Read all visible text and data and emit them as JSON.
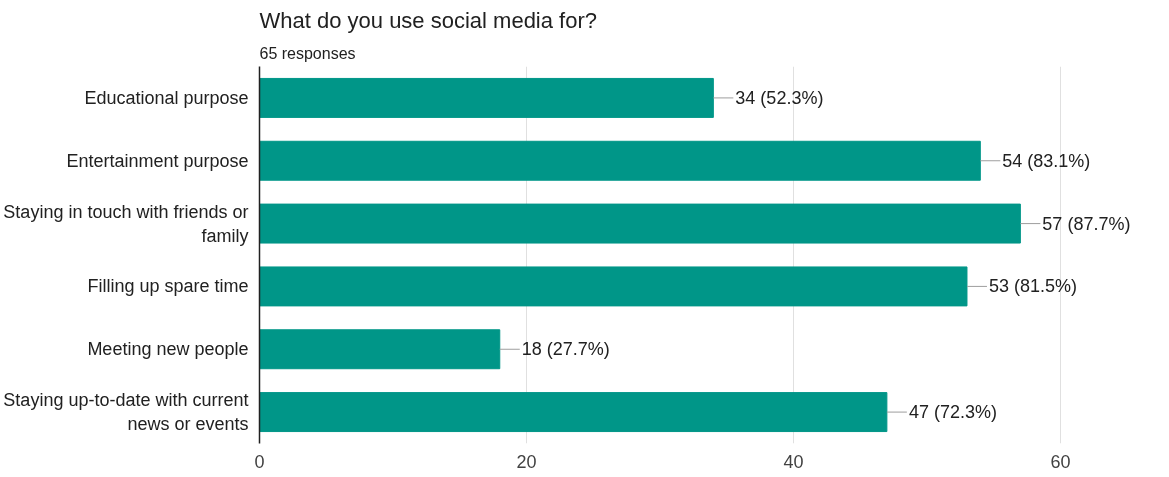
{
  "chart_data": {
    "type": "bar",
    "orientation": "horizontal",
    "title": "What do you use social media for?",
    "subtitle": "65 responses",
    "categories": [
      "Educational purpose",
      "Entertainment purpose",
      "Staying in touch with friends or family",
      "Filling up spare time",
      "Meeting new people",
      "Staying up-to-date with current news or events"
    ],
    "values": [
      34,
      54,
      57,
      53,
      18,
      47
    ],
    "value_labels": [
      "34 (52.3%)",
      "54 (83.1%)",
      "57 (87.7%)",
      "53 (81.5%)",
      "18 (27.7%)",
      "47 (72.3%)"
    ],
    "color": "#009688",
    "xlim": [
      0,
      60
    ],
    "xticks": [
      0,
      20,
      40,
      60
    ],
    "grid": "x"
  }
}
